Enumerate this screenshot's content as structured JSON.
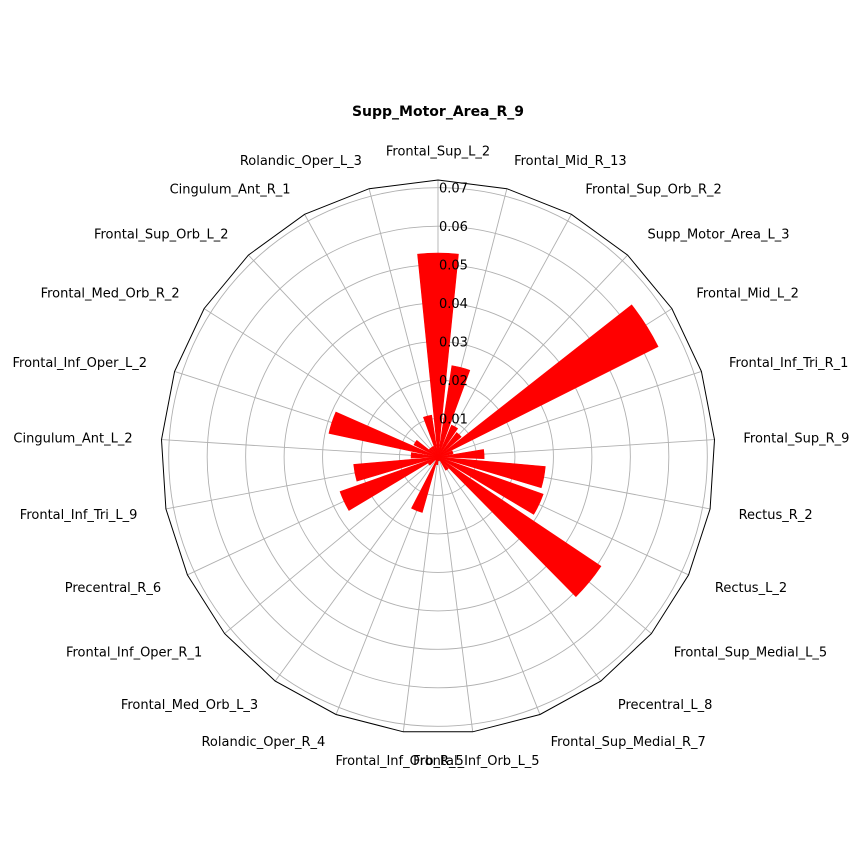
{
  "chart_data": {
    "type": "polar-bar",
    "title": "Supp_Motor_Area_R_9",
    "categories": [
      "Frontal_Sup_L_2",
      "Frontal_Mid_R_13",
      "Frontal_Sup_Orb_R_2",
      "Supp_Motor_Area_L_3",
      "Frontal_Mid_L_2",
      "Frontal_Inf_Tri_R_1",
      "Frontal_Sup_R_9",
      "Rectus_R_2",
      "Rectus_L_2",
      "Frontal_Sup_Medial_L_5",
      "Precentral_L_8",
      "Frontal_Sup_Medial_R_7",
      "Frontal_Inf_Orb_L_5",
      "Frontal_Inf_Orb_R_5",
      "Rolandic_Oper_R_4",
      "Frontal_Med_Orb_L_3",
      "Frontal_Inf_Oper_R_1",
      "Precentral_R_6",
      "Frontal_Inf_Tri_L_9",
      "Cingulum_Ant_L_2",
      "Frontal_Inf_Oper_L_2",
      "Frontal_Med_Orb_R_2",
      "Frontal_Sup_Orb_L_2",
      "Cingulum_Ant_R_1",
      "Rolandic_Oper_L_3"
    ],
    "values": [
      0.053,
      0.024,
      0.009,
      0.008,
      0.064,
      0.004,
      0.012,
      0.028,
      0.029,
      0.051,
      0.004,
      0.001,
      0.001,
      0.002,
      0.015,
      0.001,
      0.003,
      0.027,
      0.022,
      0.007,
      0.029,
      0.007,
      0.003,
      0.003,
      0.011
    ],
    "radial_ticks": [
      "0.01",
      "0.02",
      "0.03",
      "0.04",
      "0.05",
      "0.06",
      "0.07"
    ],
    "tick_values": [
      0.01,
      0.02,
      0.03,
      0.04,
      0.05,
      0.06,
      0.07
    ],
    "rmax": 0.072,
    "start": "top",
    "direction": "clockwise",
    "grid": true,
    "colors": {
      "bar": "#ff0000",
      "bar_edge": "#ff0000",
      "grid": "#b0b0b0",
      "frame": "#000000"
    }
  }
}
